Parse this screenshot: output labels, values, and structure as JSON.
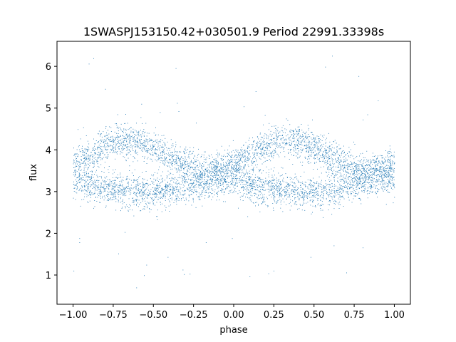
{
  "chart_data": {
    "type": "scatter",
    "title": "1SWASPJ153150.42+030501.9 Period 22991.33398s",
    "xlabel": "phase",
    "ylabel": "flux",
    "xlim": [
      -1.1,
      1.1
    ],
    "ylim": [
      0.3,
      6.6
    ],
    "xticks": [
      -1.0,
      -0.75,
      -0.5,
      -0.25,
      0.0,
      0.25,
      0.5,
      0.75,
      1.0
    ],
    "xtick_labels": [
      "−1.00",
      "−0.75",
      "−0.50",
      "−0.25",
      "0.00",
      "0.25",
      "0.50",
      "0.75",
      "1.00"
    ],
    "yticks": [
      1,
      2,
      3,
      4,
      5,
      6
    ],
    "ytick_labels": [
      "1",
      "2",
      "3",
      "4",
      "5",
      "6"
    ],
    "grid": false,
    "legend": "none",
    "marker_color": "#1f77b4",
    "series": [
      {
        "phase_range": [
          -1.0,
          1.0
        ],
        "upper_branch": {
          "x": [
            -1.0,
            -0.9,
            -0.8,
            -0.7,
            -0.6,
            -0.5,
            -0.4,
            -0.3,
            -0.2,
            -0.1,
            0.0,
            0.1,
            0.2,
            0.3,
            0.4,
            0.5,
            0.6,
            0.7,
            0.8,
            0.9,
            1.0
          ],
          "y": [
            3.7,
            3.85,
            4.1,
            4.25,
            4.2,
            4.05,
            3.85,
            3.65,
            3.5,
            3.6,
            3.7,
            3.85,
            4.1,
            4.25,
            4.2,
            4.05,
            3.85,
            3.65,
            3.5,
            3.6,
            3.7
          ]
        },
        "lower_branch": {
          "x": [
            -1.0,
            -0.9,
            -0.8,
            -0.7,
            -0.6,
            -0.5,
            -0.4,
            -0.3,
            -0.2,
            -0.1,
            0.0,
            0.1,
            0.2,
            0.3,
            0.4,
            0.5,
            0.6,
            0.7,
            0.8,
            0.9,
            1.0
          ],
          "y": [
            3.3,
            3.15,
            3.1,
            3.05,
            3.0,
            3.0,
            3.05,
            3.1,
            3.2,
            3.3,
            3.3,
            3.15,
            3.1,
            3.05,
            3.0,
            3.0,
            3.05,
            3.1,
            3.2,
            3.3,
            3.3
          ]
        },
        "scatter_width": 0.35,
        "outlier_range": [
          0.6,
          6.3
        ]
      }
    ]
  }
}
